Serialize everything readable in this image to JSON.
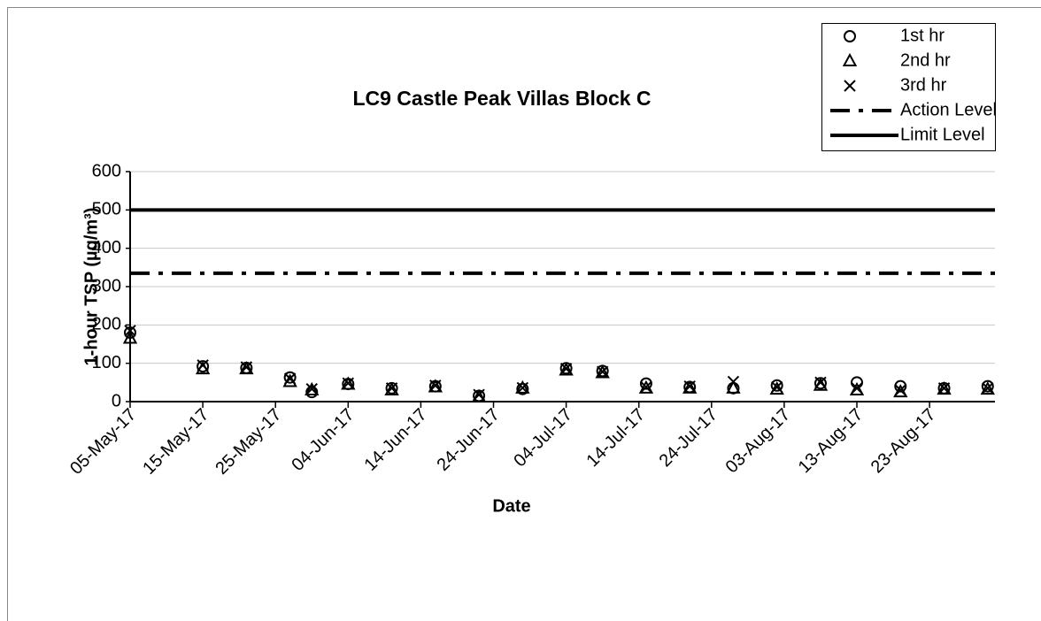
{
  "chart_data": {
    "type": "scatter",
    "title": "LC9 Castle Peak Villas Block C",
    "xlabel": "Date",
    "ylabel": "1-hour TSP (µg/m³)",
    "x": [
      "2017-05-05",
      "2017-05-15",
      "2017-05-21",
      "2017-05-27",
      "2017-05-30",
      "2017-06-04",
      "2017-06-10",
      "2017-06-16",
      "2017-06-22",
      "2017-06-28",
      "2017-07-04",
      "2017-07-09",
      "2017-07-15",
      "2017-07-21",
      "2017-07-27",
      "2017-08-02",
      "2017-08-08",
      "2017-08-13",
      "2017-08-19",
      "2017-08-25",
      "2017-08-31"
    ],
    "series": [
      {
        "name": "1st hr",
        "marker": "circle",
        "color": "#000000",
        "values": [
          180,
          92,
          88,
          63,
          25,
          46,
          35,
          40,
          15,
          33,
          87,
          80,
          47,
          38,
          35,
          42,
          48,
          50,
          40,
          35,
          40
        ]
      },
      {
        "name": "2nd hr",
        "marker": "triangle",
        "color": "#000000",
        "values": [
          165,
          85,
          85,
          52,
          30,
          45,
          30,
          38,
          12,
          35,
          82,
          75,
          35,
          35,
          35,
          32,
          42,
          30,
          25,
          32,
          32
        ]
      },
      {
        "name": "3rd hr",
        "marker": "cross",
        "color": "#000000",
        "values": [
          185,
          95,
          90,
          60,
          33,
          48,
          35,
          42,
          18,
          36,
          86,
          78,
          38,
          40,
          52,
          38,
          50,
          35,
          30,
          35,
          35
        ]
      }
    ],
    "lines": [
      {
        "name": "Action Level",
        "value": 335,
        "style": "dash-dot",
        "color": "#000000"
      },
      {
        "name": "Limit Level",
        "value": 500,
        "style": "solid",
        "color": "#000000"
      }
    ],
    "xlim": [
      "2017-05-05",
      "2017-09-01"
    ],
    "xticks": [
      {
        "value": "2017-05-05",
        "label": "05-May-17"
      },
      {
        "value": "2017-05-15",
        "label": "15-May-17"
      },
      {
        "value": "2017-05-25",
        "label": "25-May-17"
      },
      {
        "value": "2017-06-04",
        "label": "04-Jun-17"
      },
      {
        "value": "2017-06-14",
        "label": "14-Jun-17"
      },
      {
        "value": "2017-06-24",
        "label": "24-Jun-17"
      },
      {
        "value": "2017-07-04",
        "label": "04-Jul-17"
      },
      {
        "value": "2017-07-14",
        "label": "14-Jul-17"
      },
      {
        "value": "2017-07-24",
        "label": "24-Jul-17"
      },
      {
        "value": "2017-08-03",
        "label": "03-Aug-17"
      },
      {
        "value": "2017-08-13",
        "label": "13-Aug-17"
      },
      {
        "value": "2017-08-23",
        "label": "23-Aug-17"
      }
    ],
    "ylim": [
      0,
      600
    ],
    "yticks": [
      0,
      100,
      200,
      300,
      400,
      500,
      600
    ],
    "grid": true,
    "legend": "top-right"
  }
}
